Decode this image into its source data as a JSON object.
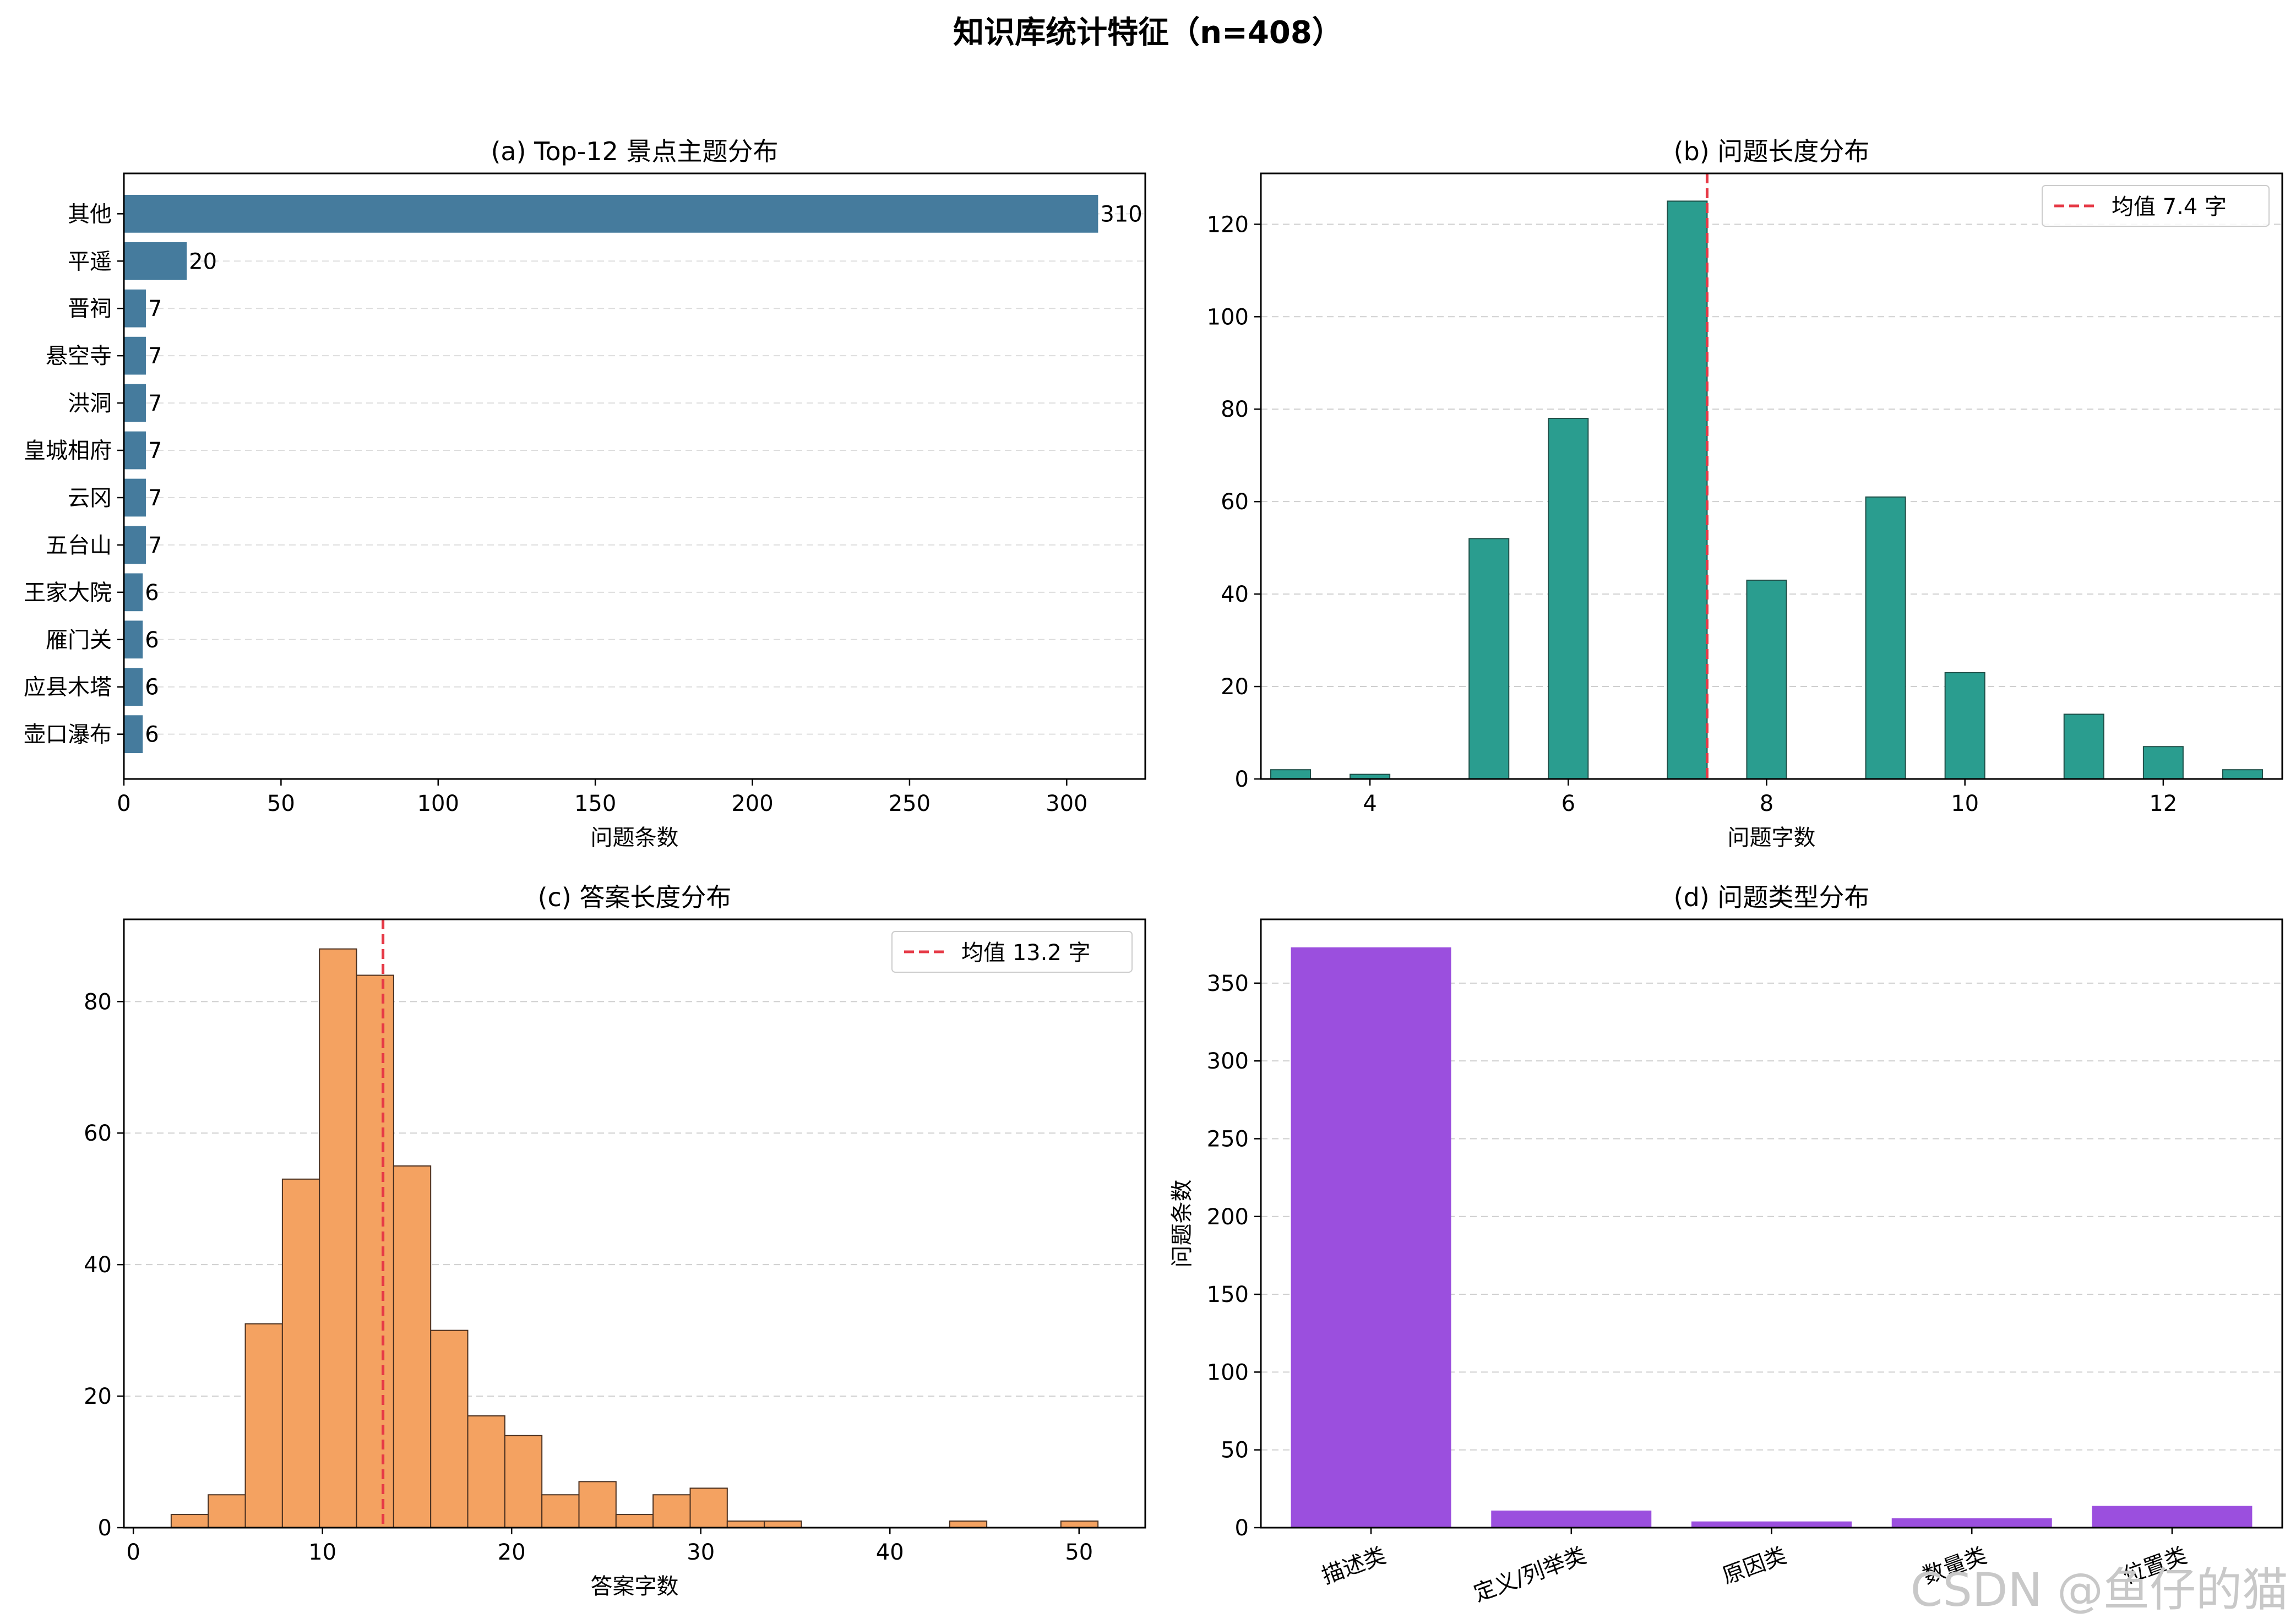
{
  "figure": {
    "suptitle": "知识库统计特征（n=408）",
    "watermark": "CSDN @鱼仔的猫"
  },
  "chart_data": [
    {
      "type": "bar",
      "orientation": "horizontal",
      "title": "(a) Top-12 景点主题分布",
      "xlabel": "问题条数",
      "ylabel": "",
      "categories": [
        "其他",
        "平遥",
        "晋祠",
        "悬空寺",
        "洪洞",
        "皇城相府",
        "云冈",
        "五台山",
        "王家大院",
        "雁门关",
        "应县木塔",
        "壶口瀑布"
      ],
      "values": [
        310,
        20,
        7,
        7,
        7,
        7,
        7,
        7,
        6,
        6,
        6,
        6
      ],
      "data_labels": [
        "310",
        "20",
        "7",
        "7",
        "7",
        "7",
        "7",
        "7",
        "6",
        "6",
        "6",
        "6"
      ],
      "xlim": [
        0,
        325
      ],
      "xticks": [
        0,
        50,
        100,
        150,
        200,
        250,
        300
      ],
      "grid": "x dashed",
      "color": "#457b9d"
    },
    {
      "type": "bar",
      "title": "(b) 问题长度分布",
      "xlabel": "问题字数",
      "ylabel": "",
      "x": [
        3.2,
        4,
        5.2,
        6,
        7.2,
        8,
        9.2,
        10,
        11.2,
        12,
        12.8
      ],
      "values": [
        2,
        1,
        52,
        78,
        125,
        43,
        61,
        23,
        14,
        7,
        2
      ],
      "bin_width": 0.4,
      "xlim": [
        2.9,
        13.2
      ],
      "ylim": [
        0,
        131
      ],
      "xticks": [
        4,
        6,
        8,
        10,
        12
      ],
      "yticks": [
        0,
        20,
        40,
        60,
        80,
        100,
        120
      ],
      "mean_line": 7.4,
      "legend": [
        "均值 7.4 字"
      ],
      "legend_position": "top-right",
      "grid": "y dashed",
      "color": "#2a9d8f",
      "mean_color": "#e63946"
    },
    {
      "type": "bar",
      "subtype": "histogram",
      "title": "(c) 答案长度分布",
      "xlabel": "答案字数",
      "ylabel": "",
      "bin_edges": [
        2,
        3.96,
        5.92,
        7.88,
        9.84,
        11.8,
        13.76,
        15.72,
        17.68,
        19.64,
        21.6,
        23.56,
        25.52,
        27.48,
        29.44,
        31.4,
        33.36,
        35.32,
        37.28,
        39.24,
        41.2,
        43.16,
        45.12,
        47.08,
        49.04,
        51
      ],
      "counts": [
        2,
        5,
        31,
        53,
        88,
        84,
        55,
        30,
        17,
        14,
        5,
        7,
        2,
        5,
        6,
        1,
        1,
        0,
        0,
        0,
        0,
        1,
        0,
        0,
        1
      ],
      "xlim": [
        -0.5,
        53.5
      ],
      "ylim": [
        0,
        92.5
      ],
      "xticks": [
        0,
        10,
        20,
        30,
        40,
        50
      ],
      "yticks": [
        0,
        20,
        40,
        60,
        80
      ],
      "mean_line": 13.2,
      "legend": [
        "均值 13.2 字"
      ],
      "legend_position": "top-right",
      "grid": "y dashed",
      "color": "#f4a261",
      "mean_color": "#e63946"
    },
    {
      "type": "bar",
      "title": "(d) 问题类型分布",
      "xlabel": "",
      "ylabel": "问题条数",
      "categories": [
        "描述类",
        "定义/列举类",
        "原因类",
        "数量类",
        "位置类"
      ],
      "values": [
        373,
        11,
        4,
        6,
        14
      ],
      "ylim": [
        0,
        391
      ],
      "yticks": [
        0,
        50,
        100,
        150,
        200,
        250,
        300,
        350
      ],
      "grid": "y dashed",
      "color": "#9b4fde"
    }
  ]
}
